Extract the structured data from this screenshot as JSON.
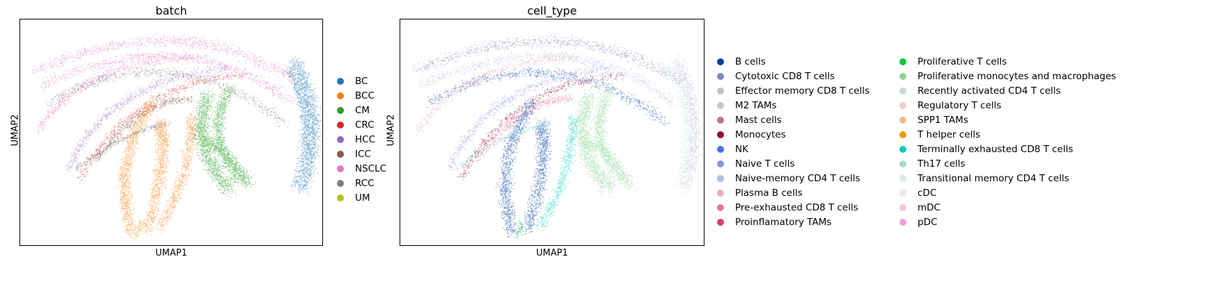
{
  "chart_data": [
    {
      "type": "scatter",
      "title": "batch",
      "xlabel": "UMAP1",
      "ylabel": "UMAP2",
      "grid": false,
      "legend_placement": "right",
      "categories": [
        {
          "name": "BC",
          "color": "#1f77b4"
        },
        {
          "name": "BCC",
          "color": "#ff7f0e"
        },
        {
          "name": "CM",
          "color": "#2ca02c"
        },
        {
          "name": "CRC",
          "color": "#d62728"
        },
        {
          "name": "HCC",
          "color": "#9467bd"
        },
        {
          "name": "ICC",
          "color": "#8c564b"
        },
        {
          "name": "NSCLC",
          "color": "#e377c2"
        },
        {
          "name": "RCC",
          "color": "#7f7f7f"
        },
        {
          "name": "UM",
          "color": "#bcbd22"
        }
      ]
    },
    {
      "type": "scatter",
      "title": "cell_type",
      "xlabel": "UMAP1",
      "ylabel": "UMAP2",
      "grid": false,
      "legend_placement": "right",
      "categories": [
        {
          "name": "B cells",
          "color": "#023fa5"
        },
        {
          "name": "Cytotoxic CD8 T cells",
          "color": "#7d87b9"
        },
        {
          "name": "Effector memory CD8 T cells",
          "color": "#bec1d4"
        },
        {
          "name": "M2 TAMs",
          "color": "#d6bcc0"
        },
        {
          "name": "Mast cells",
          "color": "#bb7784"
        },
        {
          "name": "Monocytes",
          "color": "#8e063b"
        },
        {
          "name": "NK",
          "color": "#4a6fe3"
        },
        {
          "name": "Naive T cells",
          "color": "#8595e1"
        },
        {
          "name": "Naive-memory CD4 T cells",
          "color": "#b5bbe3"
        },
        {
          "name": "Plasma B cells",
          "color": "#e6afb9"
        },
        {
          "name": "Pre-exhausted CD8 T cells",
          "color": "#e07b91"
        },
        {
          "name": "Proinflamatory TAMs",
          "color": "#d33f6a"
        },
        {
          "name": "Proliferative T cells",
          "color": "#11c638"
        },
        {
          "name": "Proliferative monocytes and macrophages",
          "color": "#8dd593"
        },
        {
          "name": "Recently activated CD4 T cells",
          "color": "#c6dec7"
        },
        {
          "name": "Regulatory T cells",
          "color": "#ead3c6"
        },
        {
          "name": "SPP1 TAMs",
          "color": "#f0b98d"
        },
        {
          "name": "T helper cells",
          "color": "#ef9708"
        },
        {
          "name": "Terminally exhausted CD8 T cells",
          "color": "#0fcfc0"
        },
        {
          "name": "Th17 cells",
          "color": "#9cded6"
        },
        {
          "name": "Transitional memory CD4 T cells",
          "color": "#d5eae7"
        },
        {
          "name": "cDC",
          "color": "#f3e1eb"
        },
        {
          "name": "mDC",
          "color": "#f6c4e1"
        },
        {
          "name": "pDC",
          "color": "#f79cd4"
        }
      ]
    }
  ]
}
